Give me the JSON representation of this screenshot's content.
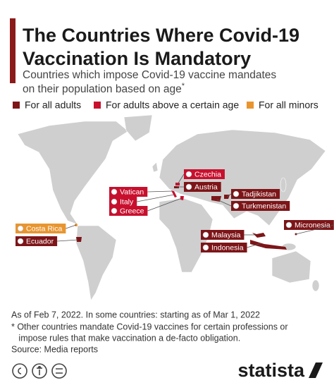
{
  "header": {
    "title_lines": [
      "The Countries Where Covid-19",
      "Vaccination Is Mandatory"
    ],
    "subtitle_lines": [
      "Countries which impose Covid-19 vaccine mandates",
      "on their population based on age"
    ],
    "subtitle_mark": "*"
  },
  "legend": [
    {
      "label": "For all adults",
      "color": "#7d1518"
    },
    {
      "label": "For adults above a certain age",
      "color": "#c8102e"
    },
    {
      "label": "For all minors",
      "color": "#e8952f"
    }
  ],
  "countries": [
    {
      "name": "Czechia",
      "color": "#c8102e"
    },
    {
      "name": "Austria",
      "color": "#7d1518"
    },
    {
      "name": "Tadjikistan",
      "color": "#7d1518"
    },
    {
      "name": "Turkmenistan",
      "color": "#7d1518"
    },
    {
      "name": "Vatican",
      "color": "#c8102e"
    },
    {
      "name": "Italy",
      "color": "#c8102e"
    },
    {
      "name": "Greece",
      "color": "#c8102e"
    },
    {
      "name": "Costa Rica",
      "color": "#e8952f"
    },
    {
      "name": "Ecuador",
      "color": "#7d1518"
    },
    {
      "name": "Malaysia",
      "color": "#7d1518"
    },
    {
      "name": "Indonesia",
      "color": "#7d1518"
    },
    {
      "name": "Micronesia",
      "color": "#7d1518"
    }
  ],
  "footer": {
    "notes": [
      "As of Feb 7, 2022. In some countries: starting as of Mar 1, 2022",
      "* Other countries mandate Covid-19 vaccines for certain professions or",
      "   impose rules that make vaccination a de-facto obligation."
    ],
    "source": "Source: Media reports",
    "brand": "statista"
  }
}
